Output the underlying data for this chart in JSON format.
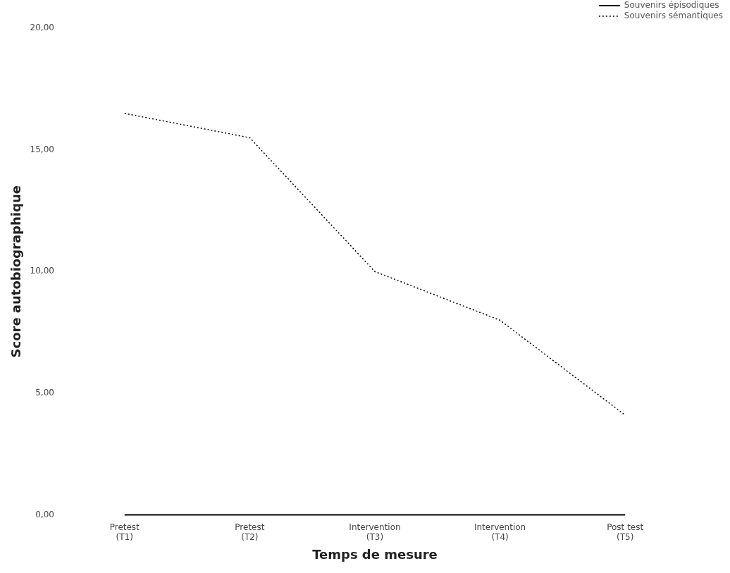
{
  "chart_data": {
    "type": "line",
    "xlabel": "Temps de mesure",
    "ylabel": "Score autobiographique",
    "categories": [
      "Pretest (T1)",
      "Pretest (T2)",
      "Intervention (T3)",
      "Intervention (T4)",
      "Post test (T5)"
    ],
    "series": [
      {
        "name": "Souvenirs épisodiques",
        "color": "#000000",
        "line_style": "solid",
        "values": [
          0,
          0,
          0,
          0,
          0
        ]
      },
      {
        "name": "Souvenirs sémantiques",
        "color": "#000000",
        "line_style": "dotted",
        "values": [
          16.5,
          15.5,
          10,
          8,
          4.1
        ]
      }
    ],
    "ylim": [
      0,
      20
    ],
    "yticks": [
      {
        "value": 0,
        "label": "0,00"
      },
      {
        "value": 5,
        "label": "5,00"
      },
      {
        "value": 10,
        "label": "10,00"
      },
      {
        "value": 15,
        "label": "15,00"
      },
      {
        "value": 20,
        "label": "20,00"
      }
    ],
    "grid": false,
    "legend": "top right",
    "marker": "none"
  }
}
